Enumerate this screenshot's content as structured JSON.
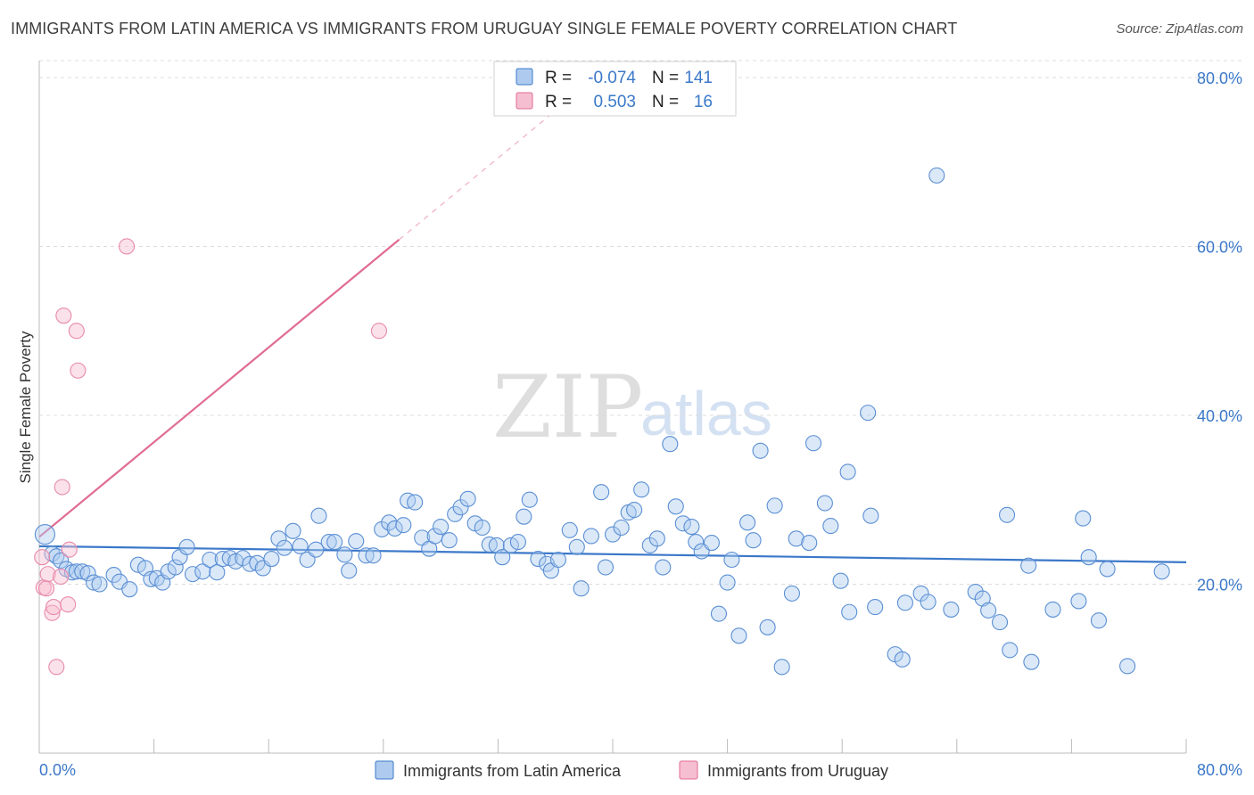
{
  "title": "IMMIGRANTS FROM LATIN AMERICA VS IMMIGRANTS FROM URUGUAY SINGLE FEMALE POVERTY CORRELATION CHART",
  "source": "Source: ZipAtlas.com",
  "watermark": {
    "zip": "ZIP",
    "atlas": "atlas"
  },
  "colors": {
    "blue": "#3b78c9",
    "blue_fill": "#aecbef",
    "pink": "#e06b94",
    "pink_fill": "#f6bfd1",
    "grid": "#d8d8d8"
  },
  "legend": {
    "rows": [
      {
        "r_label": "R =",
        "r_value": "-0.074",
        "n_label": "N =",
        "n_value": "141"
      },
      {
        "r_label": "R =",
        "r_value": "0.503",
        "n_label": "N =",
        "n_value": "16"
      }
    ]
  },
  "bottom_legend": [
    "Immigrants from Latin America",
    "Immigrants from Uruguay"
  ],
  "chart_data": {
    "type": "scatter",
    "title": "IMMIGRANTS FROM LATIN AMERICA VS IMMIGRANTS FROM URUGUAY SINGLE FEMALE POVERTY CORRELATION CHART",
    "xlabel": "",
    "ylabel": "Single Female Poverty",
    "xlim": [
      0,
      80
    ],
    "ylim": [
      0,
      82
    ],
    "x_tick_labels": [
      "0.0%",
      "80.0%"
    ],
    "y_ticks": [
      20,
      40,
      60,
      80
    ],
    "y_tick_labels": [
      "20.0%",
      "40.0%",
      "60.0%",
      "80.0%"
    ],
    "grid": true,
    "series": [
      {
        "name": "Immigrants from Latin America",
        "color": "#3b78c9",
        "R": -0.074,
        "N": 141,
        "trend": {
          "x": [
            0,
            80
          ],
          "y": [
            24.5,
            22.6
          ]
        },
        "points": [
          [
            0.4,
            25.9
          ],
          [
            0.9,
            23.6
          ],
          [
            1.2,
            23.3
          ],
          [
            1.5,
            22.8
          ],
          [
            1.9,
            21.8
          ],
          [
            2.3,
            21.4
          ],
          [
            2.6,
            21.5
          ],
          [
            3.0,
            21.5
          ],
          [
            3.4,
            21.3
          ],
          [
            3.8,
            20.2
          ],
          [
            4.2,
            20.0
          ],
          [
            5.2,
            21.1
          ],
          [
            5.6,
            20.3
          ],
          [
            6.3,
            19.4
          ],
          [
            6.9,
            22.3
          ],
          [
            7.4,
            21.9
          ],
          [
            7.8,
            20.6
          ],
          [
            8.2,
            20.7
          ],
          [
            8.6,
            20.2
          ],
          [
            9.0,
            21.5
          ],
          [
            9.5,
            22.0
          ],
          [
            9.8,
            23.2
          ],
          [
            10.3,
            24.4
          ],
          [
            10.7,
            21.2
          ],
          [
            11.4,
            21.5
          ],
          [
            11.9,
            22.9
          ],
          [
            12.4,
            21.4
          ],
          [
            12.8,
            23.0
          ],
          [
            13.3,
            23.1
          ],
          [
            13.7,
            22.7
          ],
          [
            14.2,
            23.1
          ],
          [
            14.7,
            22.4
          ],
          [
            15.2,
            22.5
          ],
          [
            15.6,
            21.9
          ],
          [
            16.2,
            23.0
          ],
          [
            16.7,
            25.4
          ],
          [
            17.1,
            24.3
          ],
          [
            17.7,
            26.3
          ],
          [
            18.2,
            24.5
          ],
          [
            18.7,
            22.9
          ],
          [
            19.3,
            24.1
          ],
          [
            19.5,
            28.1
          ],
          [
            20.2,
            25.0
          ],
          [
            20.6,
            25.0
          ],
          [
            21.3,
            23.5
          ],
          [
            21.6,
            21.6
          ],
          [
            22.1,
            25.1
          ],
          [
            22.8,
            23.4
          ],
          [
            23.3,
            23.4
          ],
          [
            23.9,
            26.5
          ],
          [
            24.4,
            27.3
          ],
          [
            24.8,
            26.6
          ],
          [
            25.4,
            27.0
          ],
          [
            25.7,
            29.9
          ],
          [
            26.2,
            29.7
          ],
          [
            26.7,
            25.5
          ],
          [
            27.2,
            24.2
          ],
          [
            27.6,
            25.7
          ],
          [
            28.0,
            26.8
          ],
          [
            28.6,
            25.2
          ],
          [
            29.0,
            28.3
          ],
          [
            29.4,
            29.1
          ],
          [
            29.9,
            30.1
          ],
          [
            30.4,
            27.2
          ],
          [
            30.9,
            26.7
          ],
          [
            31.4,
            24.7
          ],
          [
            31.9,
            24.6
          ],
          [
            32.3,
            23.2
          ],
          [
            32.9,
            24.6
          ],
          [
            33.4,
            25.0
          ],
          [
            33.8,
            28.0
          ],
          [
            34.2,
            30.0
          ],
          [
            34.8,
            23.0
          ],
          [
            35.4,
            22.4
          ],
          [
            35.7,
            21.6
          ],
          [
            36.2,
            22.9
          ],
          [
            37.0,
            26.4
          ],
          [
            37.5,
            24.4
          ],
          [
            37.8,
            19.5
          ],
          [
            38.5,
            25.7
          ],
          [
            39.2,
            30.9
          ],
          [
            39.5,
            22.0
          ],
          [
            40.0,
            25.9
          ],
          [
            40.6,
            26.7
          ],
          [
            41.1,
            28.5
          ],
          [
            41.5,
            28.8
          ],
          [
            42.0,
            31.2
          ],
          [
            42.6,
            24.6
          ],
          [
            43.1,
            25.4
          ],
          [
            43.5,
            22.0
          ],
          [
            44.0,
            36.6
          ],
          [
            44.4,
            29.2
          ],
          [
            44.9,
            27.2
          ],
          [
            45.5,
            26.8
          ],
          [
            45.8,
            25.0
          ],
          [
            46.2,
            23.9
          ],
          [
            46.9,
            24.9
          ],
          [
            47.4,
            16.5
          ],
          [
            48.0,
            20.2
          ],
          [
            48.3,
            22.9
          ],
          [
            48.8,
            13.9
          ],
          [
            49.4,
            27.3
          ],
          [
            49.8,
            25.2
          ],
          [
            50.3,
            35.8
          ],
          [
            50.8,
            14.9
          ],
          [
            51.3,
            29.3
          ],
          [
            51.8,
            10.2
          ],
          [
            52.5,
            18.9
          ],
          [
            52.8,
            25.4
          ],
          [
            53.7,
            24.9
          ],
          [
            54.0,
            36.7
          ],
          [
            54.8,
            29.6
          ],
          [
            55.2,
            26.9
          ],
          [
            55.9,
            20.4
          ],
          [
            56.4,
            33.3
          ],
          [
            56.5,
            16.7
          ],
          [
            57.8,
            40.3
          ],
          [
            58.0,
            28.1
          ],
          [
            58.3,
            17.3
          ],
          [
            59.7,
            11.7
          ],
          [
            60.2,
            11.1
          ],
          [
            60.4,
            17.8
          ],
          [
            61.5,
            18.9
          ],
          [
            62.0,
            17.9
          ],
          [
            62.6,
            68.4
          ],
          [
            63.6,
            17.0
          ],
          [
            65.3,
            19.1
          ],
          [
            65.8,
            18.3
          ],
          [
            66.2,
            16.9
          ],
          [
            67.0,
            15.5
          ],
          [
            67.5,
            28.2
          ],
          [
            67.7,
            12.2
          ],
          [
            69.0,
            22.2
          ],
          [
            69.2,
            10.8
          ],
          [
            70.7,
            17.0
          ],
          [
            72.5,
            18.0
          ],
          [
            72.8,
            27.8
          ],
          [
            73.2,
            23.2
          ],
          [
            73.9,
            15.7
          ],
          [
            74.5,
            21.8
          ],
          [
            75.9,
            10.3
          ],
          [
            78.3,
            21.5
          ]
        ]
      },
      {
        "name": "Immigrants from Uruguay",
        "color": "#e06b94",
        "R": 0.503,
        "N": 16,
        "trend": {
          "x": [
            0,
            25.1
          ],
          "y": [
            25.6,
            60.8
          ]
        },
        "trend_dashed": {
          "x": [
            25.1,
            35.6
          ],
          "y": [
            60.8,
            75.5
          ]
        },
        "points": [
          [
            0.2,
            23.2
          ],
          [
            0.3,
            19.6
          ],
          [
            0.5,
            19.5
          ],
          [
            0.6,
            21.2
          ],
          [
            0.9,
            16.6
          ],
          [
            1.0,
            17.3
          ],
          [
            1.2,
            10.2
          ],
          [
            1.5,
            20.9
          ],
          [
            1.6,
            31.5
          ],
          [
            1.7,
            51.8
          ],
          [
            2.0,
            17.6
          ],
          [
            2.1,
            24.1
          ],
          [
            2.6,
            50.0
          ],
          [
            2.7,
            45.3
          ],
          [
            6.1,
            60.0
          ],
          [
            23.7,
            50.0
          ]
        ]
      }
    ]
  }
}
